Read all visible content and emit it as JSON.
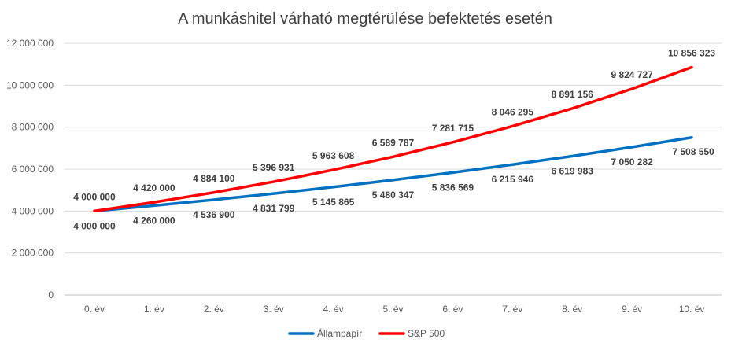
{
  "chart_data": {
    "type": "line",
    "title": "A munkáshitel várható megtérülése befektetés esetén",
    "xlabel": "",
    "ylabel": "",
    "ylim": [
      0,
      12000000
    ],
    "categories": [
      "0. év",
      "1. év",
      "2. év",
      "3. év",
      "4. év",
      "5. év",
      "6. év",
      "7. év",
      "8. év",
      "9. év",
      "10. év"
    ],
    "y_ticks": [
      0,
      2000000,
      4000000,
      6000000,
      8000000,
      10000000,
      12000000
    ],
    "y_tick_labels": [
      "0",
      "2 000 000",
      "4 000 000",
      "6 000 000",
      "8 000 000",
      "10 000 000",
      "12 000 000"
    ],
    "grid": true,
    "legend_position": "bottom",
    "series": [
      {
        "name": "Állampapír",
        "color": "#0070C0",
        "label_position": "below",
        "values": [
          4000000,
          4260000,
          4536900,
          4831799,
          5145865,
          5480347,
          5836569,
          6215946,
          6619983,
          7050282,
          7508550
        ],
        "labels": [
          "4 000 000",
          "4 260 000",
          "4 536 900",
          "4 831 799",
          "5 145 865",
          "5 480 347",
          "5 836 569",
          "6 215 946",
          "6 619 983",
          "7 050 282",
          "7 508 550"
        ]
      },
      {
        "name": "S&P 500",
        "color": "#FF0000",
        "label_position": "above",
        "values": [
          4000000,
          4420000,
          4884100,
          5396931,
          5963608,
          6589787,
          7281715,
          8046295,
          8891156,
          9824727,
          10856323
        ],
        "labels": [
          "4 000 000",
          "4 420 000",
          "4 884 100",
          "5 396 931",
          "5 963 608",
          "6 589 787",
          "7 281 715",
          "8 046 295",
          "8 891 156",
          "9 824 727",
          "10 856 323"
        ]
      }
    ]
  }
}
